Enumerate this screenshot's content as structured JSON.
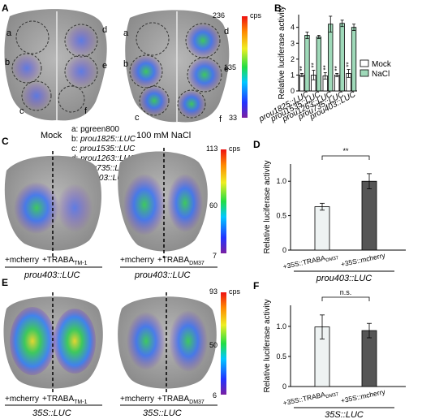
{
  "panels": {
    "A": {
      "letter": "A",
      "leaf_labels": [
        "a",
        "b",
        "c",
        "d",
        "e",
        "f"
      ],
      "captions": {
        "mock": "Mock",
        "nacl": "100 mM NaCl"
      },
      "scale": {
        "max": "236",
        "mid": "135",
        "min": "33",
        "unit": "cps"
      },
      "legend": [
        {
          "key": "a:",
          "text": "pgreen800",
          "italic": false
        },
        {
          "key": "b:",
          "text": "prou1825::LUC",
          "italic": true
        },
        {
          "key": "c:",
          "text": "prou1535::LUC",
          "italic": true
        },
        {
          "key": "d:",
          "text": "prou1263::LUC",
          "italic": true
        },
        {
          "key": "e:",
          "text": "prou735::LUC",
          "italic": true
        },
        {
          "key": "f:",
          "text": "prou403::LUC",
          "italic": true
        }
      ]
    },
    "C": {
      "letter": "C",
      "labels": {
        "left_a": "+mcherry",
        "left_b": "+TRABA",
        "left_sub": "TM-1",
        "right_a": "+mcherry",
        "right_b": "+TRABA",
        "right_sub": "DM37",
        "reporter_left": "prou403::LUC",
        "reporter_right": "prou403::LUC"
      },
      "scale": {
        "max": "113",
        "mid": "60",
        "min": "7",
        "unit": "cps"
      }
    },
    "E": {
      "letter": "E",
      "labels": {
        "left_a": "+mcherry",
        "left_b": "+TRABA",
        "left_sub": "TM-1",
        "right_a": "+mcherry",
        "right_b": "+TRABA",
        "right_sub": "DM37",
        "reporter_left": "35S::LUC",
        "reporter_right": "35S::LUC"
      },
      "scale": {
        "max": "93",
        "mid": "50",
        "min": "6",
        "unit": "cps"
      }
    }
  },
  "colors": {
    "mock": "#ffffff",
    "nacl": "#9fd9b9",
    "light_bar": "#eef3f3",
    "dark_bar": "#555555"
  },
  "chart_data": [
    {
      "panel": "B",
      "type": "bar",
      "categories": [
        "prou1825::LUC",
        "prou1535::LUC",
        "prou1263::LUC",
        "prou735::LUC",
        "prou403::LUC"
      ],
      "series": [
        {
          "name": "Mock",
          "values": [
            1.0,
            1.0,
            0.95,
            1.0,
            1.1
          ],
          "errors": [
            0.1,
            0.3,
            0.2,
            0.1,
            0.25
          ],
          "sig": [
            "**",
            "**",
            "**",
            "**",
            "**"
          ]
        },
        {
          "name": "NaCl",
          "values": [
            3.5,
            3.4,
            4.2,
            4.25,
            4.0
          ],
          "errors": [
            0.2,
            0.1,
            0.5,
            0.2,
            0.2
          ]
        }
      ],
      "ylabel": "Relative luciferase activity",
      "ylim": [
        0,
        4.8
      ],
      "yticks": [
        0,
        1,
        2,
        3,
        4
      ],
      "legend_position": "right"
    },
    {
      "panel": "D",
      "type": "bar",
      "categories": [
        "+35S::TRABA_DM37",
        "+35S::mcherry"
      ],
      "category_labels": [
        {
          "main": "+35S::TRABA",
          "sub": "DM37"
        },
        {
          "main": "+35S::mcherry",
          "sub": ""
        }
      ],
      "values": [
        0.63,
        1.0
      ],
      "errors": [
        0.05,
        0.11
      ],
      "ylabel": "Relative luciferase activity",
      "xlabel": "prou403::LUC",
      "ylim": [
        0,
        1.25
      ],
      "yticks": [
        "0",
        "0.5",
        "1.0"
      ],
      "significance": "**"
    },
    {
      "panel": "F",
      "type": "bar",
      "categories": [
        "+35S::TRABA_DM37",
        "+35S::mcherry"
      ],
      "category_labels": [
        {
          "main": "+35S::TRABA",
          "sub": "DM37"
        },
        {
          "main": "+35S::mcherry",
          "sub": ""
        }
      ],
      "values": [
        0.99,
        0.93
      ],
      "errors": [
        0.2,
        0.12
      ],
      "ylabel": "Relative luciferase activity",
      "xlabel": "35S::LUC",
      "ylim": [
        0,
        1.35
      ],
      "yticks": [
        "0",
        "0.5",
        "1.0"
      ],
      "significance": "n.s."
    }
  ]
}
